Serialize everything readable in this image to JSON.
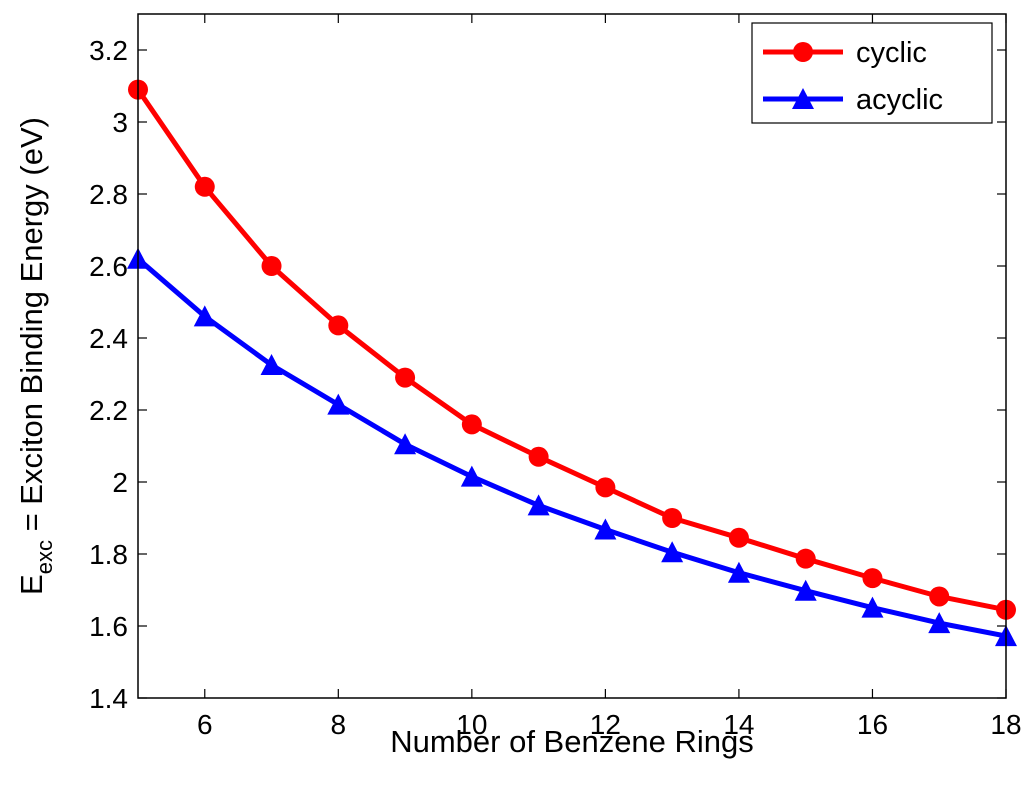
{
  "chart_data": {
    "type": "line",
    "x": [
      5,
      6,
      7,
      8,
      9,
      10,
      11,
      12,
      13,
      14,
      15,
      16,
      17,
      18
    ],
    "series": [
      {
        "name": "cyclic",
        "color": "#ff0000",
        "marker": "circle",
        "values": [
          3.09,
          2.82,
          2.6,
          2.435,
          2.29,
          2.16,
          2.07,
          1.985,
          1.9,
          1.845,
          1.787,
          1.733,
          1.682,
          1.645
        ]
      },
      {
        "name": "acyclic",
        "color": "#0000ff",
        "marker": "triangle",
        "values": [
          2.62,
          2.46,
          2.325,
          2.215,
          2.105,
          2.015,
          1.935,
          1.868,
          1.805,
          1.748,
          1.698,
          1.651,
          1.608,
          1.572
        ]
      }
    ],
    "xlim": [
      5,
      18
    ],
    "ylim": [
      1.4,
      3.3
    ],
    "xticks": [
      "6",
      "8",
      "10",
      "12",
      "14",
      "16",
      "18"
    ],
    "yticks": [
      "1.4",
      "1.6",
      "1.8",
      "2",
      "2.2",
      "2.4",
      "2.6",
      "2.8",
      "3",
      "3.2"
    ],
    "xlabel": "Number of Benzene Rings",
    "ylabel": {
      "main": "E",
      "subscript": "exc",
      "rest": " = Exciton Binding Energy (eV)"
    },
    "legend_position": "top-right",
    "grid": false
  }
}
